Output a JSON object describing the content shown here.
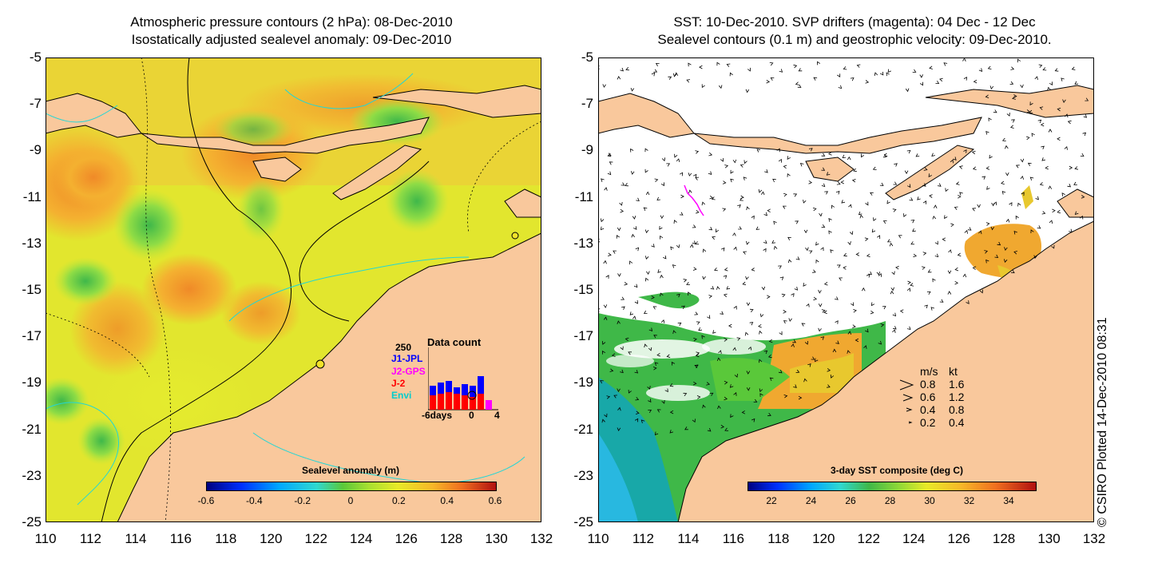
{
  "left_panel": {
    "title_line1": "Atmospheric pressure contours (2 hPa): 08-Dec-2010",
    "title_line2": "Isostatically adjusted sealevel anomaly: 09-Dec-2010",
    "colorbar_title": "Sealevel anomaly (m)",
    "colorbar_ticks": [
      "-0.6",
      "-0.4",
      "-0.2",
      "0",
      "0.2",
      "0.4",
      "0.6"
    ],
    "data_count": {
      "title": "Data count",
      "max_label": "250",
      "satellites": [
        {
          "name": "J1-JPL",
          "color": "#0000ff"
        },
        {
          "name": "J2-GPS",
          "color": "#ff00ff"
        },
        {
          "name": "J-2",
          "color": "#ff0000"
        },
        {
          "name": "Envi",
          "color": "#00cccc"
        }
      ],
      "x_labels": [
        "-6days",
        "0",
        "4"
      ]
    }
  },
  "right_panel": {
    "title_line1": "SST: 10-Dec-2010. SVP drifters (magenta): 04 Dec - 12 Dec",
    "title_line2": "Sealevel contours (0.1 m) and geostrophic velocity: 09-Dec-2010.",
    "colorbar_title": "3-day SST composite (deg C)",
    "colorbar_ticks": [
      "22",
      "24",
      "26",
      "28",
      "30",
      "32",
      "34"
    ],
    "velocity_legend": {
      "header_ms": "m/s",
      "header_kt": "kt",
      "rows": [
        {
          "ms": "0.8",
          "kt": "1.6"
        },
        {
          "ms": "0.6",
          "kt": "1.2"
        },
        {
          "ms": "0.4",
          "kt": "0.8"
        },
        {
          "ms": "0.2",
          "kt": "0.4"
        }
      ]
    }
  },
  "axes": {
    "lat_labels": [
      "-5",
      "-7",
      "-9",
      "-11",
      "-13",
      "-15",
      "-17",
      "-19",
      "-21",
      "-23",
      "-25"
    ],
    "lon_labels": [
      "110",
      "112",
      "114",
      "116",
      "118",
      "120",
      "122",
      "124",
      "126",
      "128",
      "130",
      "132"
    ]
  },
  "credit": "© CSIRO Plotted 14-Dec-2010 08:31",
  "colors": {
    "land": "#f9c89c",
    "ocean_mid": "#d4ea2a",
    "ocean_high": "#f2a92a",
    "ocean_low": "#55c83a",
    "sst_cloud": "#ffffff",
    "drifter": "#ff00ff"
  }
}
